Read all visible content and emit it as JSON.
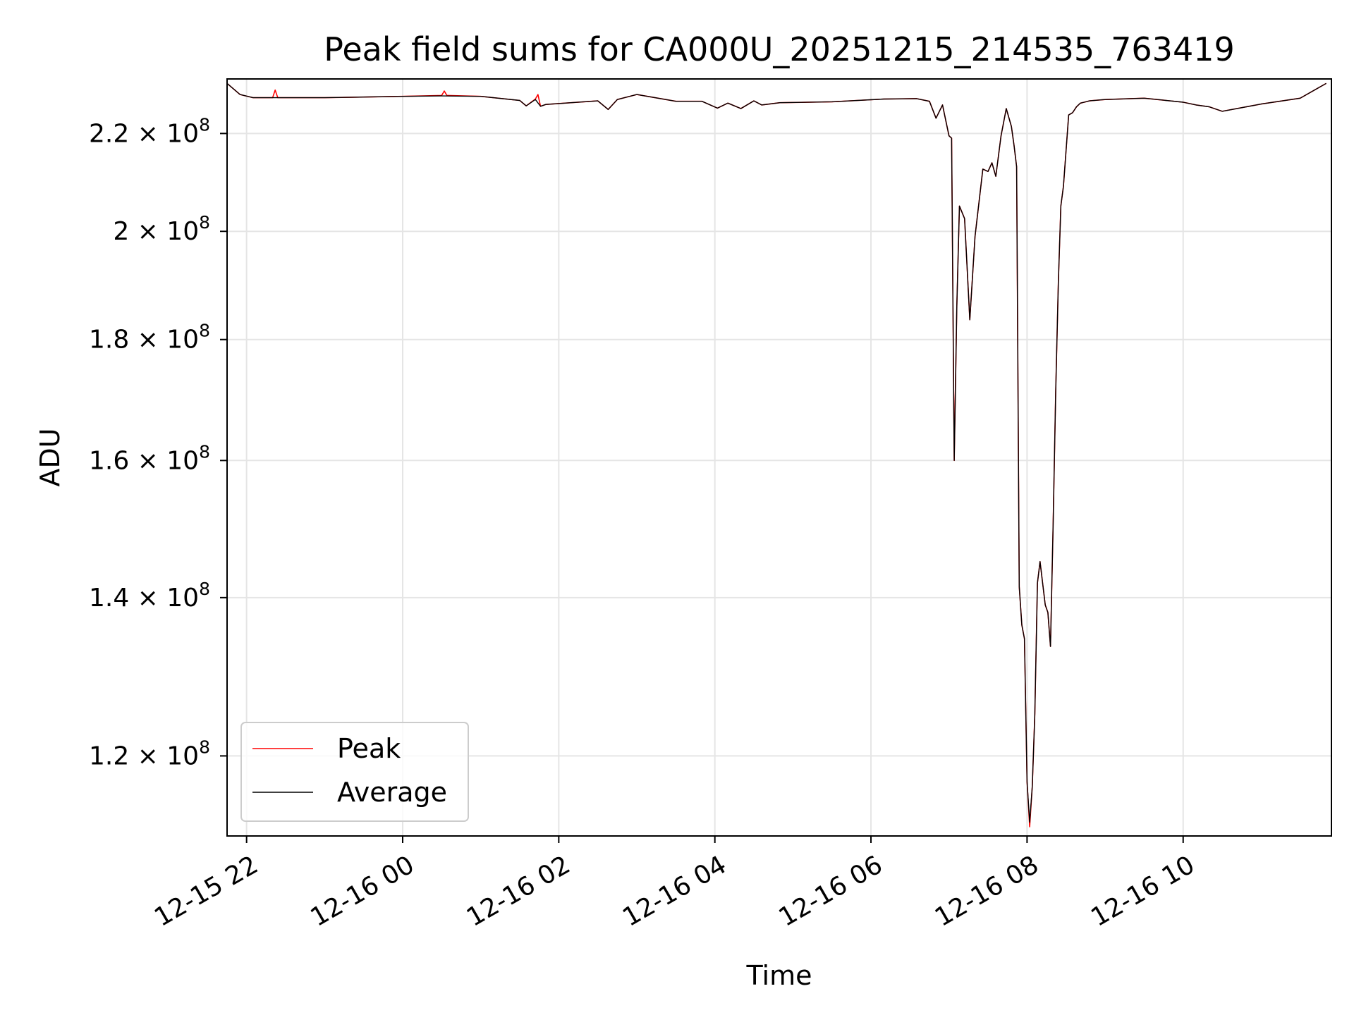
{
  "chart_data": {
    "type": "line",
    "title": "Peak field sums for CA000U_20251215_214535_763419",
    "xlabel": "Time",
    "ylabel": "ADU",
    "y_scale": "log",
    "xlim": [
      "2025-12-15 21:45",
      "2025-12-16 11:54"
    ],
    "ylim": [
      111000000,
      232000000
    ],
    "grid": true,
    "legend_position": "lower-left",
    "x_ticks": [
      {
        "value": "2025-12-15 22:00",
        "label": "12-15 22"
      },
      {
        "value": "2025-12-16 00:00",
        "label": "12-16 00"
      },
      {
        "value": "2025-12-16 02:00",
        "label": "12-16 02"
      },
      {
        "value": "2025-12-16 04:00",
        "label": "12-16 04"
      },
      {
        "value": "2025-12-16 06:00",
        "label": "12-16 06"
      },
      {
        "value": "2025-12-16 08:00",
        "label": "12-16 08"
      },
      {
        "value": "2025-12-16 10:00",
        "label": "12-16 10"
      }
    ],
    "y_ticks": [
      {
        "value": 120000000,
        "mantissa": "1.2",
        "base": "10",
        "exp": "8"
      },
      {
        "value": 140000000,
        "mantissa": "1.4",
        "base": "10",
        "exp": "8"
      },
      {
        "value": 160000000,
        "mantissa": "1.6",
        "base": "10",
        "exp": "8"
      },
      {
        "value": 180000000,
        "mantissa": "1.8",
        "base": "10",
        "exp": "8"
      },
      {
        "value": 200000000,
        "mantissa": "2",
        "base": "10",
        "exp": "8"
      },
      {
        "value": 220000000,
        "mantissa": "2.2",
        "base": "10",
        "exp": "8"
      }
    ],
    "series": [
      {
        "name": "Peak",
        "color": "#ff0000",
        "x": [
          "2025-12-15 21:45",
          "2025-12-15 21:55",
          "2025-12-15 22:05",
          "2025-12-15 22:20",
          "2025-12-15 22:22",
          "2025-12-15 22:24",
          "2025-12-15 23:00",
          "2025-12-16 00:00",
          "2025-12-16 00:30",
          "2025-12-16 00:32",
          "2025-12-16 00:34",
          "2025-12-16 01:00",
          "2025-12-16 01:30",
          "2025-12-16 01:35",
          "2025-12-16 01:42",
          "2025-12-16 01:44",
          "2025-12-16 01:46",
          "2025-12-16 01:50",
          "2025-12-16 02:30",
          "2025-12-16 02:38",
          "2025-12-16 02:45",
          "2025-12-16 03:00",
          "2025-12-16 03:30",
          "2025-12-16 03:50",
          "2025-12-16 04:02",
          "2025-12-16 04:10",
          "2025-12-16 04:20",
          "2025-12-16 04:30",
          "2025-12-16 04:36",
          "2025-12-16 04:50",
          "2025-12-16 05:30",
          "2025-12-16 06:10",
          "2025-12-16 06:35",
          "2025-12-16 06:45",
          "2025-12-16 06:50",
          "2025-12-16 06:55",
          "2025-12-16 07:00",
          "2025-12-16 07:02",
          "2025-12-16 07:04",
          "2025-12-16 07:06",
          "2025-12-16 07:08",
          "2025-12-16 07:12",
          "2025-12-16 07:16",
          "2025-12-16 07:20",
          "2025-12-16 07:26",
          "2025-12-16 07:30",
          "2025-12-16 07:33",
          "2025-12-16 07:36",
          "2025-12-16 07:40",
          "2025-12-16 07:44",
          "2025-12-16 07:48",
          "2025-12-16 07:50",
          "2025-12-16 07:52",
          "2025-12-16 07:54",
          "2025-12-16 07:56",
          "2025-12-16 07:58",
          "2025-12-16 08:00",
          "2025-12-16 08:02",
          "2025-12-16 08:04",
          "2025-12-16 08:06",
          "2025-12-16 08:08",
          "2025-12-16 08:10",
          "2025-12-16 08:14",
          "2025-12-16 08:16",
          "2025-12-16 08:18",
          "2025-12-16 08:20",
          "2025-12-16 08:22",
          "2025-12-16 08:24",
          "2025-12-16 08:26",
          "2025-12-16 08:28",
          "2025-12-16 08:32",
          "2025-12-16 08:35",
          "2025-12-16 08:38",
          "2025-12-16 08:41",
          "2025-12-16 08:44",
          "2025-12-16 08:48",
          "2025-12-16 09:00",
          "2025-12-16 09:30",
          "2025-12-16 10:00",
          "2025-12-16 10:10",
          "2025-12-16 10:20",
          "2025-12-16 10:30",
          "2025-12-16 11:00",
          "2025-12-16 11:30",
          "2025-12-16 11:50"
        ],
        "y": [
          231000000,
          228500000,
          227800000,
          227800000,
          229500000,
          227800000,
          227800000,
          228100000,
          228300000,
          229300000,
          228300000,
          228100000,
          227200000,
          226000000,
          227500000,
          228500000,
          225900000,
          226300000,
          227100000,
          225200000,
          227400000,
          228500000,
          227000000,
          227000000,
          225500000,
          226600000,
          225400000,
          227100000,
          226200000,
          226700000,
          226900000,
          227500000,
          227600000,
          227000000,
          223300000,
          226200000,
          219500000,
          219000000,
          160000000,
          186000000,
          205000000,
          202500000,
          183500000,
          199000000,
          212500000,
          212000000,
          213800000,
          211000000,
          219500000,
          225400000,
          221500000,
          217500000,
          213000000,
          141500000,
          136300000,
          134500000,
          117000000,
          112000000,
          116500000,
          125000000,
          142000000,
          145000000,
          139000000,
          138000000,
          133500000,
          150000000,
          171000000,
          190000000,
          205000000,
          209000000,
          224000000,
          224500000,
          225800000,
          226600000,
          226800000,
          227100000,
          227400000,
          227700000,
          226800000,
          226200000,
          225800000,
          224800000,
          226400000,
          227700000,
          231000000
        ]
      },
      {
        "name": "Average",
        "color": "#000000",
        "x": [
          "2025-12-15 21:45",
          "2025-12-15 21:55",
          "2025-12-15 22:05",
          "2025-12-15 23:00",
          "2025-12-16 00:00",
          "2025-12-16 00:30",
          "2025-12-16 01:00",
          "2025-12-16 01:30",
          "2025-12-16 01:35",
          "2025-12-16 01:42",
          "2025-12-16 01:46",
          "2025-12-16 01:50",
          "2025-12-16 02:30",
          "2025-12-16 02:38",
          "2025-12-16 02:45",
          "2025-12-16 03:00",
          "2025-12-16 03:30",
          "2025-12-16 03:50",
          "2025-12-16 04:02",
          "2025-12-16 04:10",
          "2025-12-16 04:20",
          "2025-12-16 04:30",
          "2025-12-16 04:36",
          "2025-12-16 04:50",
          "2025-12-16 05:30",
          "2025-12-16 06:10",
          "2025-12-16 06:35",
          "2025-12-16 06:45",
          "2025-12-16 06:50",
          "2025-12-16 06:55",
          "2025-12-16 07:00",
          "2025-12-16 07:02",
          "2025-12-16 07:04",
          "2025-12-16 07:06",
          "2025-12-16 07:08",
          "2025-12-16 07:12",
          "2025-12-16 07:16",
          "2025-12-16 07:20",
          "2025-12-16 07:26",
          "2025-12-16 07:30",
          "2025-12-16 07:33",
          "2025-12-16 07:36",
          "2025-12-16 07:40",
          "2025-12-16 07:44",
          "2025-12-16 07:48",
          "2025-12-16 07:50",
          "2025-12-16 07:52",
          "2025-12-16 07:54",
          "2025-12-16 07:56",
          "2025-12-16 07:58",
          "2025-12-16 08:00",
          "2025-12-16 08:02",
          "2025-12-16 08:04",
          "2025-12-16 08:06",
          "2025-12-16 08:08",
          "2025-12-16 08:10",
          "2025-12-16 08:14",
          "2025-12-16 08:16",
          "2025-12-16 08:18",
          "2025-12-16 08:20",
          "2025-12-16 08:22",
          "2025-12-16 08:24",
          "2025-12-16 08:26",
          "2025-12-16 08:28",
          "2025-12-16 08:32",
          "2025-12-16 08:35",
          "2025-12-16 08:38",
          "2025-12-16 08:41",
          "2025-12-16 08:44",
          "2025-12-16 08:48",
          "2025-12-16 09:00",
          "2025-12-16 09:30",
          "2025-12-16 10:00",
          "2025-12-16 10:10",
          "2025-12-16 10:20",
          "2025-12-16 10:30",
          "2025-12-16 11:00",
          "2025-12-16 11:30",
          "2025-12-16 11:50"
        ],
        "y": [
          231000000,
          228500000,
          227800000,
          227800000,
          228100000,
          228200000,
          228100000,
          227200000,
          226000000,
          227400000,
          225900000,
          226300000,
          227100000,
          225200000,
          227400000,
          228500000,
          227000000,
          227000000,
          225500000,
          226600000,
          225400000,
          227100000,
          226200000,
          226700000,
          226900000,
          227500000,
          227600000,
          227000000,
          223300000,
          226200000,
          219500000,
          219000000,
          160000000,
          186000000,
          205000000,
          202500000,
          183500000,
          199000000,
          212500000,
          212000000,
          213800000,
          211000000,
          219500000,
          225400000,
          221500000,
          217500000,
          213000000,
          141500000,
          136300000,
          134500000,
          117000000,
          112500000,
          116500000,
          125000000,
          142000000,
          145000000,
          139000000,
          138000000,
          133500000,
          150000000,
          171000000,
          190000000,
          205000000,
          209000000,
          224000000,
          224500000,
          225800000,
          226600000,
          226800000,
          227100000,
          227400000,
          227700000,
          226800000,
          226200000,
          225800000,
          224800000,
          226400000,
          227700000,
          231000000
        ]
      }
    ]
  }
}
